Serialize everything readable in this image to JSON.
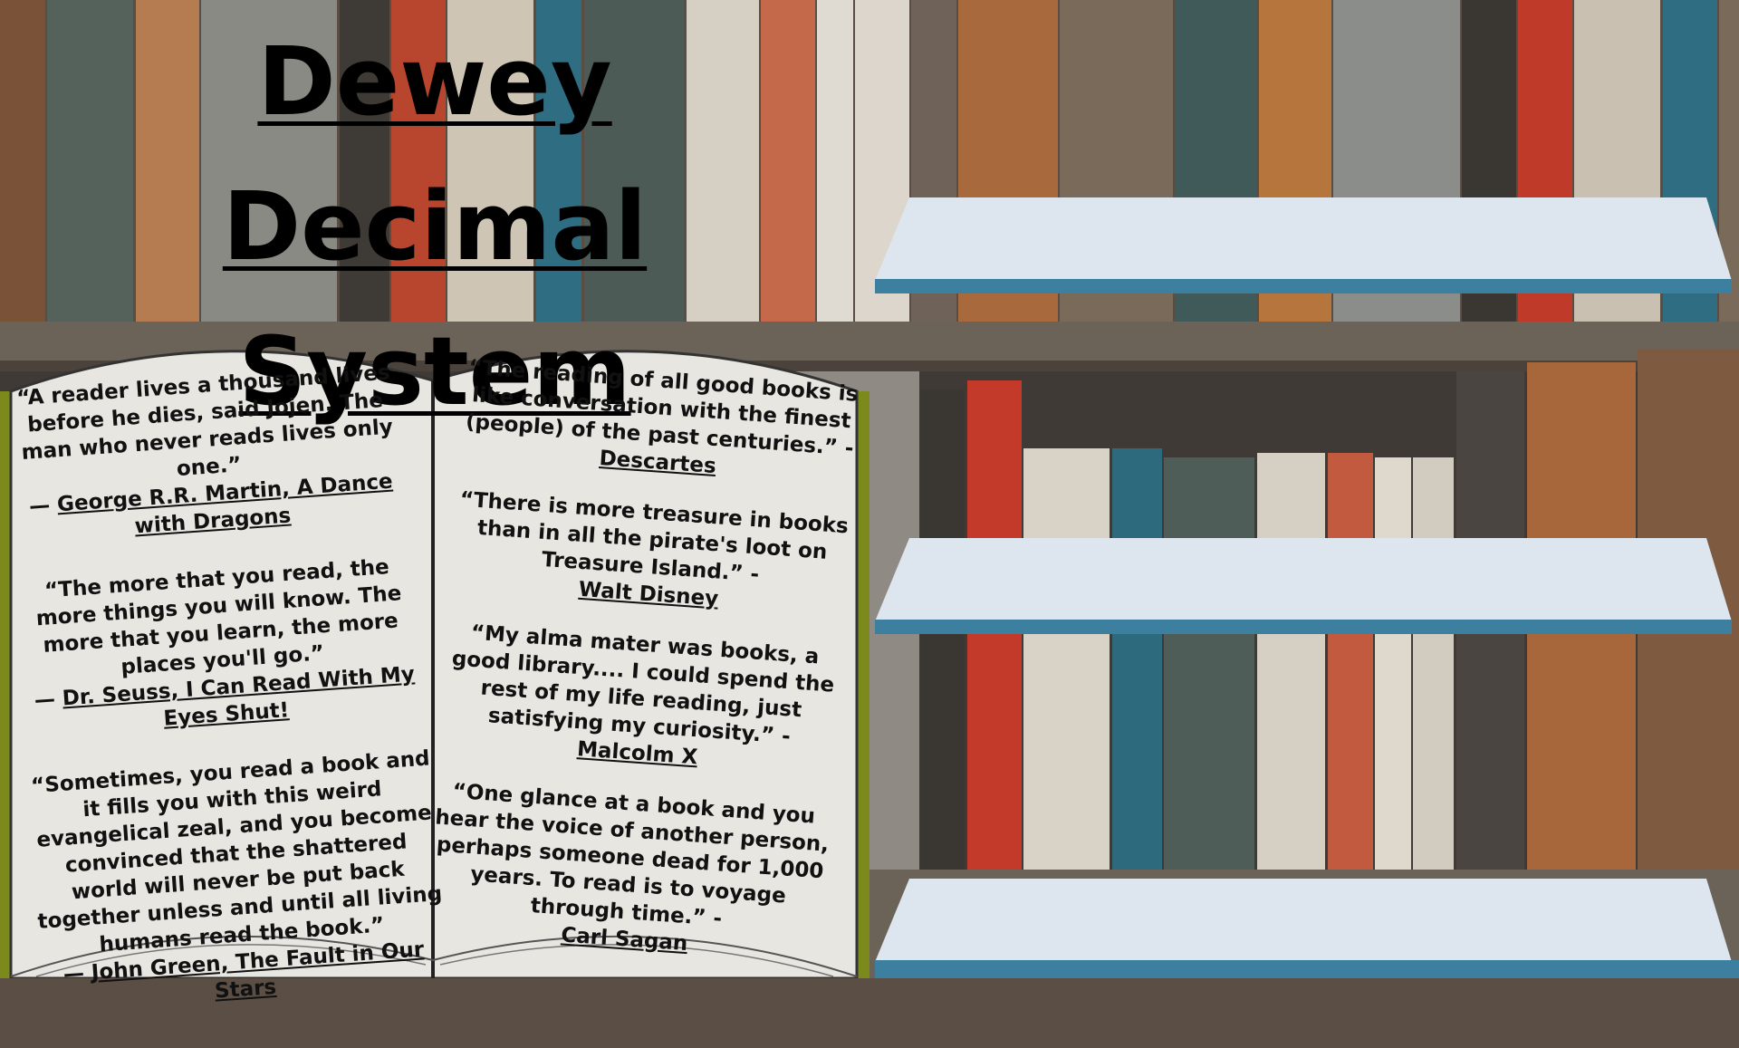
{
  "title": {
    "line1": "Dewey Decimal",
    "line2": "System"
  },
  "left_quotes": [
    {
      "text": "“A reader lives a thousand lives before he dies, said Jojen. The man who never reads lives only one.”",
      "dash": "— ",
      "author": "George R.R. Martin, A Dance with Dragons"
    },
    {
      "text": "“The more that you read, the more things you will know. The more that you learn, the more places you'll go.”",
      "dash": "— ",
      "author": "Dr. Seuss, I Can Read With My Eyes Shut!"
    },
    {
      "text": "“Sometimes, you read a book and it fills you with this weird evangelical zeal, and you become convinced that the shattered world will never be put back together unless and until all living humans read the book.”",
      "dash": "— ",
      "author": "John Green, The Fault in Our Stars"
    }
  ],
  "right_quotes": [
    {
      "text": "“The reading of all good books is like conversation with the finest (people) of the past centuries.” -",
      "author": "Descartes"
    },
    {
      "text": "“There is more treasure in books than in all the pirate's loot on Treasure Island.” -",
      "author": "Walt Disney"
    },
    {
      "text": "“My alma mater was books, a good library.... I could spend the rest of my life reading, just satisfying my curiosity.” -",
      "author": "Malcolm X"
    },
    {
      "text": "“One glance at a book and you hear the voice of another person, perhaps someone dead for 1,000 years. To read is to voyage through time.” -",
      "author": "Carl Sagan"
    }
  ],
  "colors": {
    "shelf_top": "#dde6ee",
    "shelf_edge": "#3d7f9e",
    "book_cover": "#7b8a1a",
    "page": "#e8e6e0"
  }
}
